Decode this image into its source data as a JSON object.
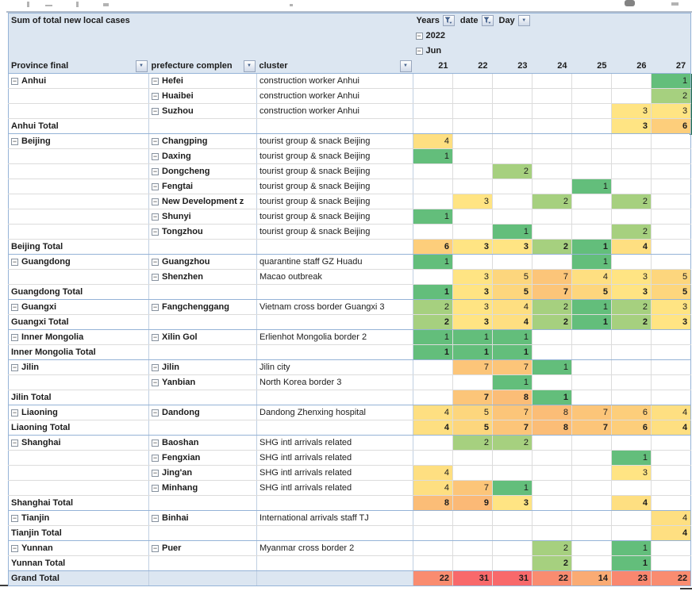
{
  "title": "Sum of total new local cases",
  "filters": [
    {
      "label": "Years",
      "type": "funnel"
    },
    {
      "label": "date",
      "type": "funnel"
    },
    {
      "label": "Day",
      "type": "dropdown"
    }
  ],
  "year_group": "2022",
  "month_group": "Jun",
  "row_headers": {
    "province": "Province final",
    "prefecture": "prefecture complen",
    "cluster": "cluster"
  },
  "days": [
    "21",
    "22",
    "23",
    "24",
    "25",
    "26",
    "27"
  ],
  "rows": [
    {
      "k": "detail",
      "p": "Anhui",
      "f": "Hefei",
      "c": "construction worker Anhui",
      "v": [
        null,
        null,
        null,
        null,
        null,
        null,
        1
      ]
    },
    {
      "k": "detail",
      "p": "",
      "f": "Huaibei",
      "c": "construction worker Anhui",
      "v": [
        null,
        null,
        null,
        null,
        null,
        null,
        2
      ]
    },
    {
      "k": "detail",
      "p": "",
      "f": "Suzhou",
      "c": "construction worker Anhui",
      "v": [
        null,
        null,
        null,
        null,
        null,
        3,
        3
      ]
    },
    {
      "k": "total",
      "p": "Anhui Total",
      "f": "",
      "c": "",
      "v": [
        null,
        null,
        null,
        null,
        null,
        3,
        6
      ]
    },
    {
      "k": "detail",
      "p": "Beijing",
      "f": "Changping",
      "c": "tourist group & snack Beijing",
      "v": [
        4,
        null,
        null,
        null,
        null,
        null,
        null
      ]
    },
    {
      "k": "detail",
      "p": "",
      "f": "Daxing",
      "c": "tourist group & snack Beijing",
      "v": [
        1,
        null,
        null,
        null,
        null,
        null,
        null
      ]
    },
    {
      "k": "detail",
      "p": "",
      "f": "Dongcheng",
      "c": "tourist group & snack Beijing",
      "v": [
        null,
        null,
        2,
        null,
        null,
        null,
        null
      ]
    },
    {
      "k": "detail",
      "p": "",
      "f": "Fengtai",
      "c": "tourist group & snack Beijing",
      "v": [
        null,
        null,
        null,
        null,
        1,
        null,
        null
      ]
    },
    {
      "k": "detail",
      "p": "",
      "f": "New Development z",
      "c": "tourist group & snack Beijing",
      "v": [
        null,
        3,
        null,
        2,
        null,
        2,
        null
      ]
    },
    {
      "k": "detail",
      "p": "",
      "f": "Shunyi",
      "c": "tourist group & snack Beijing",
      "v": [
        1,
        null,
        null,
        null,
        null,
        null,
        null
      ]
    },
    {
      "k": "detail",
      "p": "",
      "f": "Tongzhou",
      "c": "tourist group & snack Beijing",
      "v": [
        null,
        null,
        1,
        null,
        null,
        2,
        null
      ]
    },
    {
      "k": "total",
      "p": "Beijing Total",
      "f": "",
      "c": "",
      "v": [
        6,
        3,
        3,
        2,
        1,
        4,
        null
      ]
    },
    {
      "k": "detail",
      "p": "Guangdong",
      "f": "Guangzhou",
      "c": "quarantine staff GZ Huadu",
      "v": [
        1,
        null,
        null,
        null,
        1,
        null,
        null
      ]
    },
    {
      "k": "detail",
      "p": "",
      "f": "Shenzhen",
      "c": "Macao outbreak",
      "v": [
        null,
        3,
        5,
        7,
        4,
        3,
        5
      ]
    },
    {
      "k": "total",
      "p": "Guangdong Total",
      "f": "",
      "c": "",
      "v": [
        1,
        3,
        5,
        7,
        5,
        3,
        5
      ]
    },
    {
      "k": "detail",
      "p": "Guangxi",
      "f": "Fangchenggang",
      "c": "Vietnam cross border Guangxi 3",
      "v": [
        2,
        3,
        4,
        2,
        1,
        2,
        3
      ]
    },
    {
      "k": "total",
      "p": "Guangxi Total",
      "f": "",
      "c": "",
      "v": [
        2,
        3,
        4,
        2,
        1,
        2,
        3
      ]
    },
    {
      "k": "detail",
      "p": "Inner Mongolia",
      "f": "Xilin Gol",
      "c": "Erlienhot Mongolia border 2",
      "v": [
        1,
        1,
        1,
        null,
        null,
        null,
        null
      ]
    },
    {
      "k": "total",
      "p": "Inner Mongolia Total",
      "f": "",
      "c": "",
      "v": [
        1,
        1,
        1,
        null,
        null,
        null,
        null
      ]
    },
    {
      "k": "detail",
      "p": "Jilin",
      "f": "Jilin",
      "c": "Jilin city",
      "v": [
        null,
        7,
        7,
        1,
        null,
        null,
        null
      ]
    },
    {
      "k": "detail",
      "p": "",
      "f": "Yanbian",
      "c": "North Korea border 3",
      "v": [
        null,
        null,
        1,
        null,
        null,
        null,
        null
      ]
    },
    {
      "k": "total",
      "p": "Jilin Total",
      "f": "",
      "c": "",
      "v": [
        null,
        7,
        8,
        1,
        null,
        null,
        null
      ]
    },
    {
      "k": "detail",
      "p": "Liaoning",
      "f": "Dandong",
      "c": "Dandong Zhenxing hospital",
      "v": [
        4,
        5,
        7,
        8,
        7,
        6,
        4
      ]
    },
    {
      "k": "total",
      "p": "Liaoning Total",
      "f": "",
      "c": "",
      "v": [
        4,
        5,
        7,
        8,
        7,
        6,
        4
      ]
    },
    {
      "k": "detail",
      "p": "Shanghai",
      "f": "Baoshan",
      "c": "SHG intl arrivals related",
      "v": [
        null,
        2,
        2,
        null,
        null,
        null,
        null
      ]
    },
    {
      "k": "detail",
      "p": "",
      "f": "Fengxian",
      "c": "SHG intl arrivals related",
      "v": [
        null,
        null,
        null,
        null,
        null,
        1,
        null
      ]
    },
    {
      "k": "detail",
      "p": "",
      "f": "Jing'an",
      "c": "SHG intl arrivals related",
      "v": [
        4,
        null,
        null,
        null,
        null,
        3,
        null
      ]
    },
    {
      "k": "detail",
      "p": "",
      "f": "Minhang",
      "c": "SHG intl arrivals related",
      "v": [
        4,
        7,
        1,
        null,
        null,
        null,
        null
      ]
    },
    {
      "k": "total",
      "p": "Shanghai Total",
      "f": "",
      "c": "",
      "v": [
        8,
        9,
        3,
        null,
        null,
        4,
        null
      ]
    },
    {
      "k": "detail",
      "p": "Tianjin",
      "f": "Binhai",
      "c": "International arrivals staff TJ",
      "v": [
        null,
        null,
        null,
        null,
        null,
        null,
        4
      ]
    },
    {
      "k": "total",
      "p": "Tianjin Total",
      "f": "",
      "c": "",
      "v": [
        null,
        null,
        null,
        null,
        null,
        null,
        4
      ]
    },
    {
      "k": "detail",
      "p": "Yunnan",
      "f": "Puer",
      "c": "Myanmar cross border 2",
      "v": [
        null,
        null,
        null,
        2,
        null,
        1,
        null
      ]
    },
    {
      "k": "total",
      "p": "Yunnan Total",
      "f": "",
      "c": "",
      "v": [
        null,
        null,
        null,
        2,
        null,
        1,
        null
      ]
    },
    {
      "k": "grand",
      "p": "Grand Total",
      "f": "",
      "c": "",
      "v": [
        22,
        31,
        31,
        22,
        14,
        23,
        22
      ]
    }
  ],
  "colors": {
    "header_bg": "#DCE6F1",
    "border_blue": "#95B3D7",
    "border_gray": "#DCDCDC",
    "value_scale": {
      "1": "#63BE7B",
      "2": "#A6D07F",
      "3": "#FFE483",
      "4": "#FEDF81",
      "5": "#FDD67D",
      "6": "#FDCE7B",
      "7": "#FCC579",
      "8": "#FBBD77",
      "9": "#FBB976",
      "14": "#FAAB74",
      "22": "#F98C70",
      "23": "#F9876F",
      "31": "#F8696B"
    }
  }
}
